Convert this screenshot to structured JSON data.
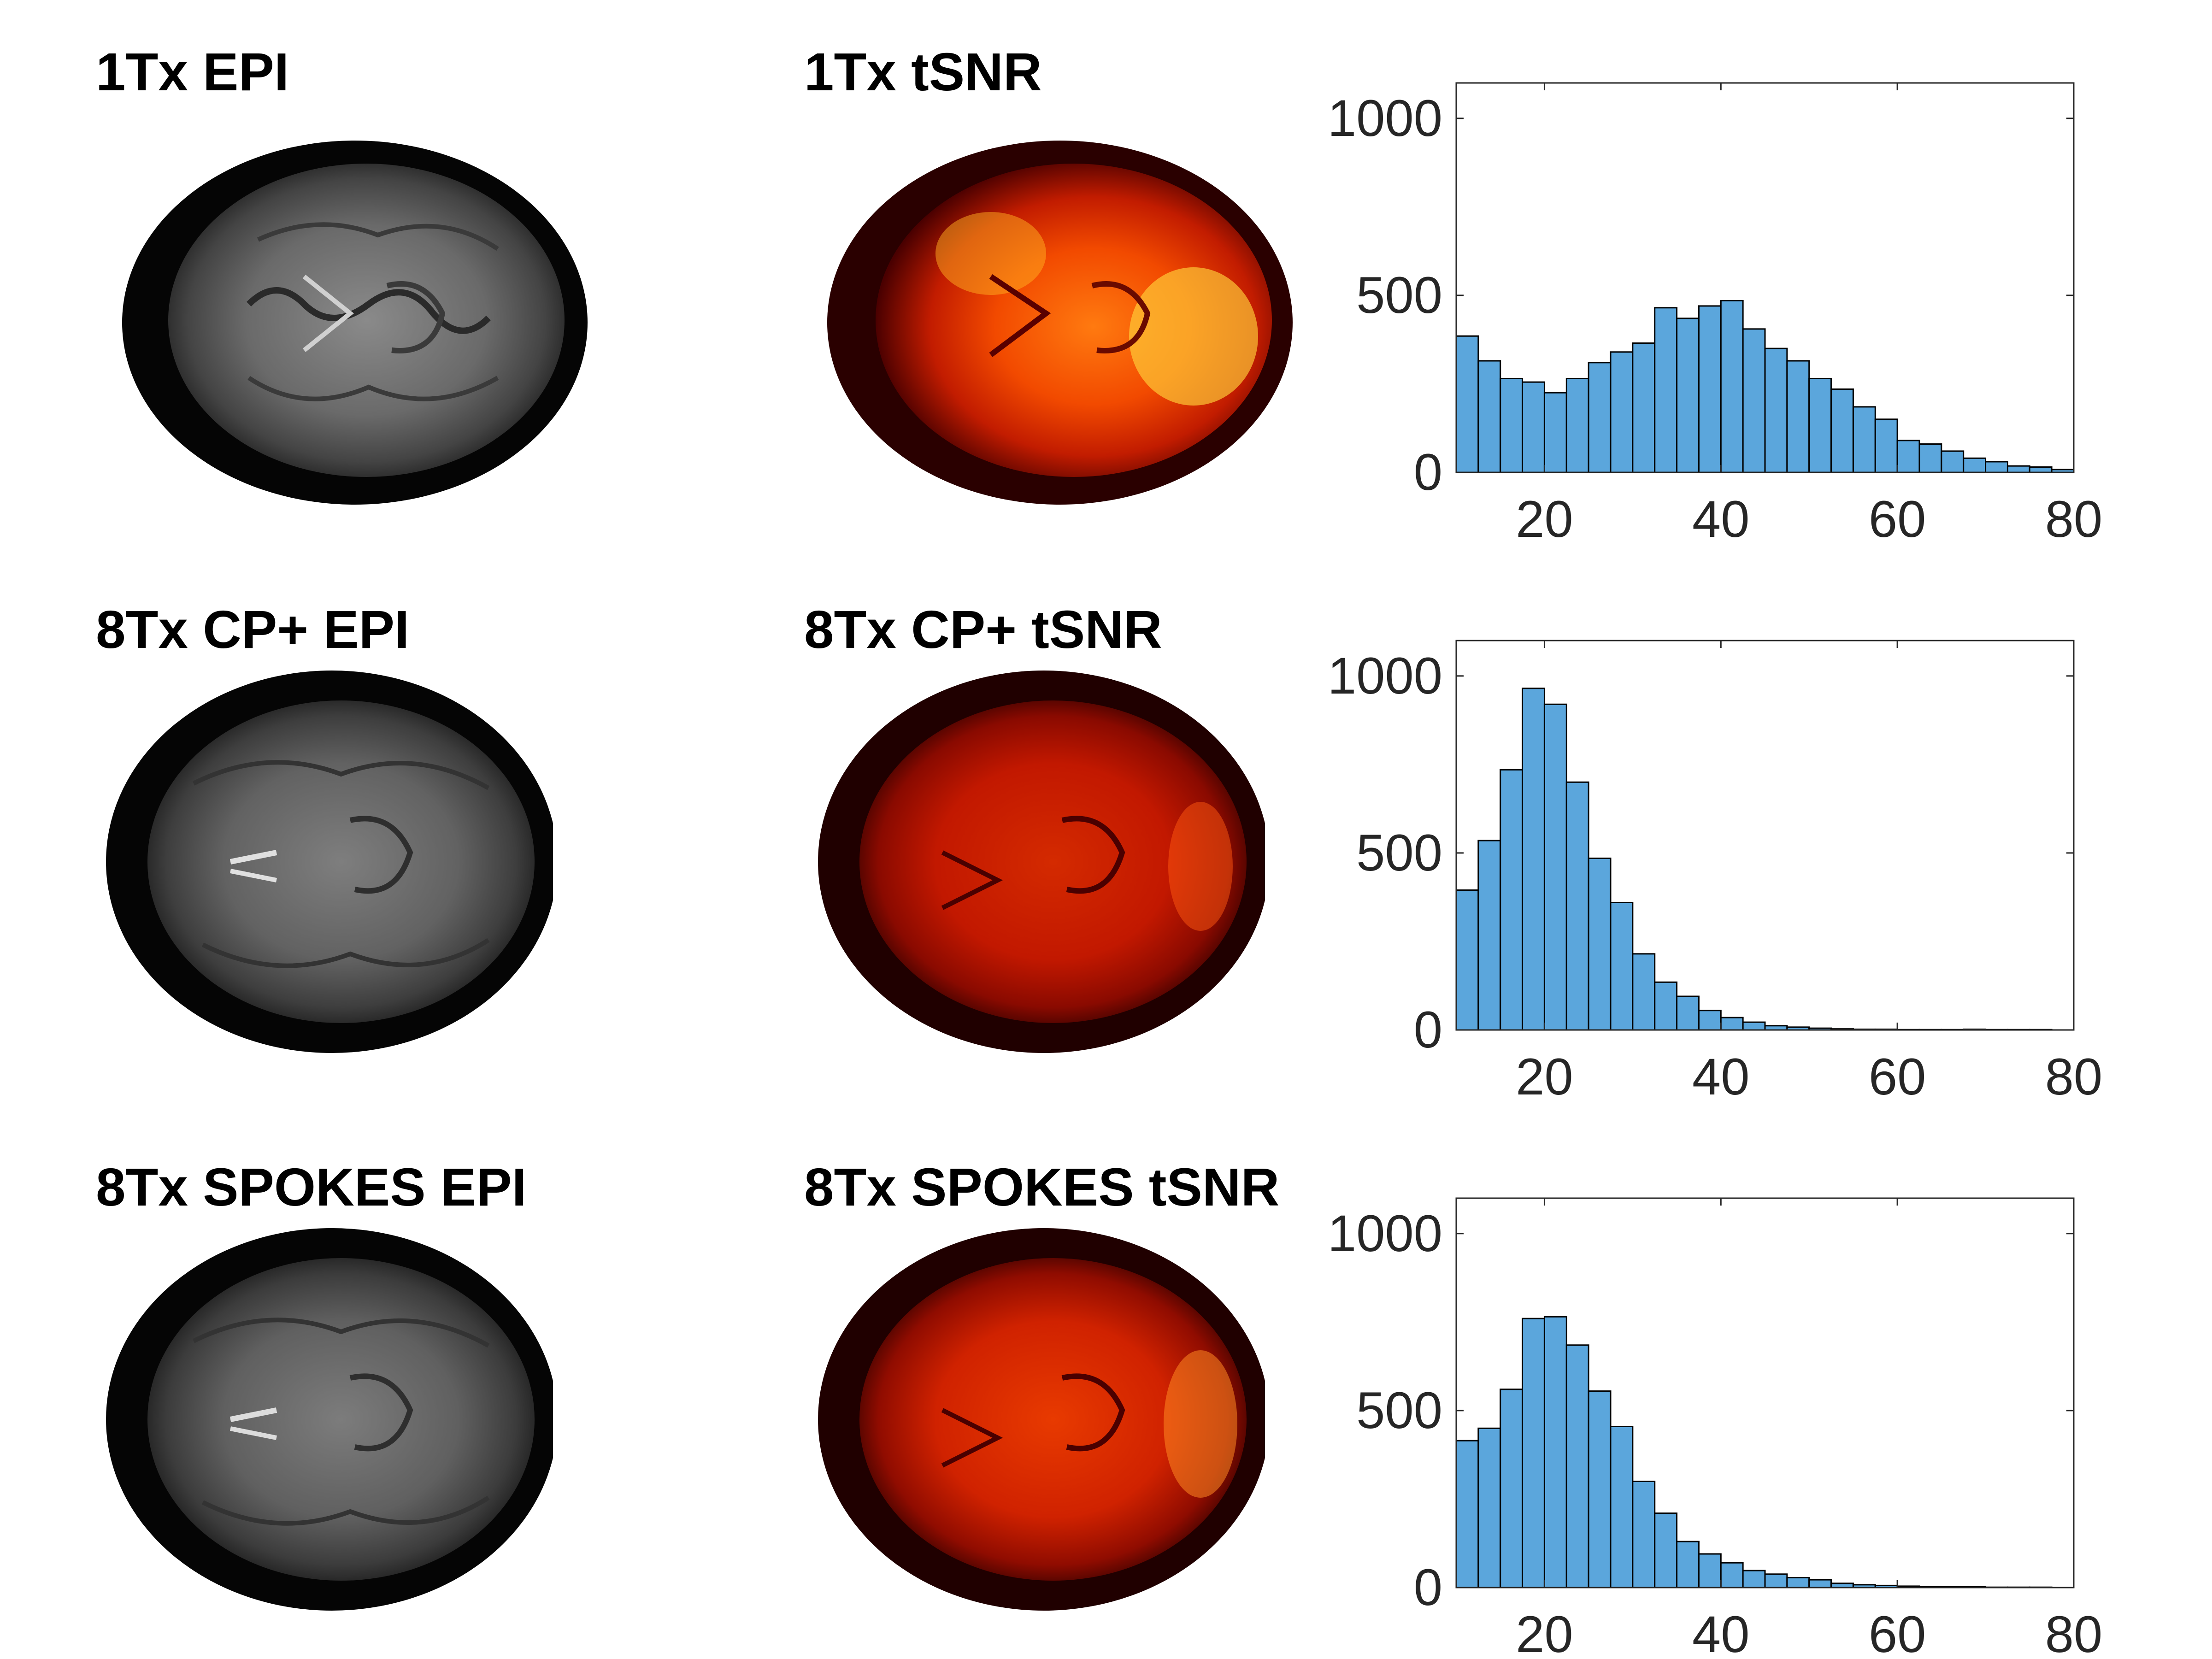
{
  "colors": {
    "bar_fill": "#5ba6dc",
    "bar_edge": "#000000",
    "axis": "#262626",
    "tick_text": "#262626",
    "title_text": "#000000"
  },
  "rows": [
    {
      "epi_title": "1Tx EPI",
      "tsnr_title": "1Tx tSNR",
      "tsnr_intensity": "bright"
    },
    {
      "epi_title": "8Tx CP+ EPI",
      "tsnr_title": "8Tx CP+ tSNR",
      "tsnr_intensity": "dim"
    },
    {
      "epi_title": "8Tx SPOKES EPI",
      "tsnr_title": "8Tx SPOKES tSNR",
      "tsnr_intensity": "medium"
    }
  ],
  "chart_data": [
    {
      "type": "bar",
      "title": "1Tx tSNR histogram",
      "xlim": [
        10,
        80
      ],
      "ylim": [
        0,
        1100
      ],
      "xticks": [
        20,
        40,
        60,
        80
      ],
      "yticks": [
        0,
        500,
        1000
      ],
      "bin_start": 10,
      "bin_width": 2.5,
      "values": [
        385,
        315,
        265,
        255,
        225,
        265,
        310,
        340,
        365,
        465,
        435,
        470,
        485,
        405,
        350,
        315,
        265,
        235,
        185,
        150,
        90,
        80,
        60,
        40,
        30,
        18,
        15,
        8
      ]
    },
    {
      "type": "bar",
      "title": "8Tx CP+ tSNR histogram",
      "xlim": [
        10,
        80
      ],
      "ylim": [
        0,
        1100
      ],
      "xticks": [
        20,
        40,
        60,
        80
      ],
      "yticks": [
        0,
        500,
        1000
      ],
      "bin_start": 10,
      "bin_width": 2.5,
      "values": [
        395,
        535,
        735,
        965,
        920,
        700,
        485,
        360,
        215,
        135,
        95,
        55,
        35,
        22,
        12,
        8,
        5,
        3,
        2,
        2,
        1,
        1,
        1,
        2,
        1,
        1,
        1,
        0
      ]
    },
    {
      "type": "bar",
      "title": "8Tx SPOKES tSNR histogram",
      "xlim": [
        10,
        80
      ],
      "ylim": [
        0,
        1100
      ],
      "xticks": [
        20,
        40,
        60,
        80
      ],
      "yticks": [
        0,
        500,
        1000
      ],
      "bin_start": 10,
      "bin_width": 2.5,
      "values": [
        415,
        450,
        560,
        760,
        765,
        685,
        555,
        455,
        300,
        210,
        130,
        95,
        70,
        48,
        38,
        28,
        22,
        12,
        8,
        6,
        4,
        3,
        2,
        2,
        1,
        1,
        1,
        0
      ]
    }
  ]
}
